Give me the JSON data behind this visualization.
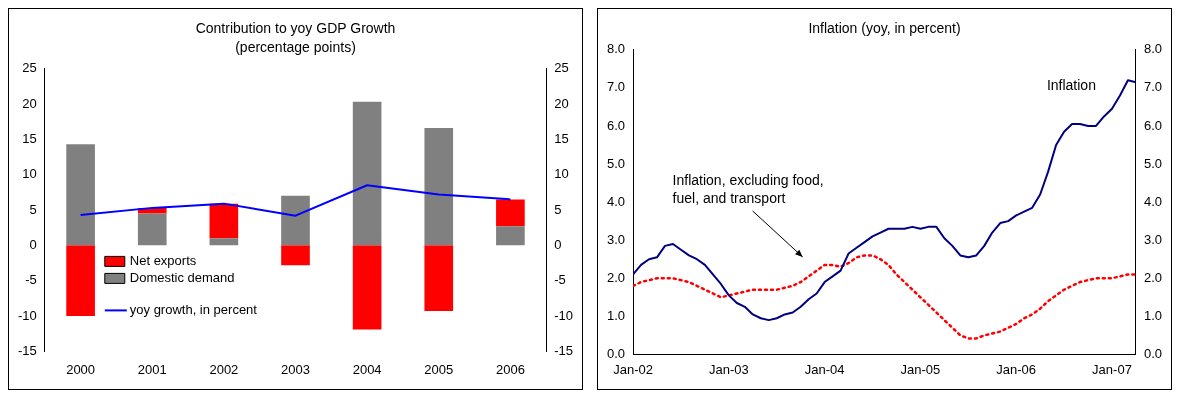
{
  "chart_data": [
    {
      "type": "bar",
      "title": "Contribution to yoy GDP Growth",
      "subtitle": "(percentage points)",
      "stacked": true,
      "categories": [
        "2000",
        "2001",
        "2002",
        "2003",
        "2004",
        "2005",
        "2006"
      ],
      "series": [
        {
          "name": "Domestic demand",
          "color": "#808080",
          "values": [
            14.3,
            4.5,
            1.0,
            7.0,
            20.3,
            16.6,
            2.7
          ]
        },
        {
          "name": "Net exports",
          "color": "#ff0000",
          "values": [
            -10.0,
            0.8,
            4.9,
            -2.8,
            -11.9,
            -9.3,
            3.8
          ]
        },
        {
          "name": "yoy growth, in percent",
          "type": "line",
          "color": "#0000ff",
          "values": [
            4.3,
            5.3,
            5.9,
            4.2,
            8.5,
            7.2,
            6.5
          ]
        }
      ],
      "ylim": [
        -15,
        25
      ],
      "yticks": [
        -15,
        -10,
        -5,
        0,
        5,
        10,
        15,
        20,
        25
      ],
      "y2lim": [
        -15,
        25
      ],
      "y2ticks": [
        -15,
        -10,
        -5,
        0,
        5,
        10,
        15,
        20,
        25
      ],
      "legend": "bottom left",
      "grid": false,
      "marker": "none"
    },
    {
      "type": "line",
      "title": "Inflation (yoy, in percent)",
      "x": [
        "2002-01",
        "2002-02",
        "2002-03",
        "2002-04",
        "2002-05",
        "2002-06",
        "2002-07",
        "2002-08",
        "2002-09",
        "2002-10",
        "2002-11",
        "2002-12",
        "2003-01",
        "2003-02",
        "2003-03",
        "2003-04",
        "2003-05",
        "2003-06",
        "2003-07",
        "2003-08",
        "2003-09",
        "2003-10",
        "2003-11",
        "2003-12",
        "2004-01",
        "2004-02",
        "2004-03",
        "2004-04",
        "2004-05",
        "2004-06",
        "2004-07",
        "2004-08",
        "2004-09",
        "2004-10",
        "2004-11",
        "2004-12",
        "2005-01",
        "2005-02",
        "2005-03",
        "2005-04",
        "2005-05",
        "2005-06",
        "2005-07",
        "2005-08",
        "2005-09",
        "2005-10",
        "2005-11",
        "2005-12",
        "2006-01",
        "2006-02",
        "2006-03",
        "2006-04",
        "2006-05",
        "2006-06",
        "2006-07",
        "2006-08",
        "2006-09",
        "2006-10",
        "2006-11",
        "2006-12",
        "2007-01",
        "2007-02",
        "2007-03",
        "2007-04"
      ],
      "series": [
        {
          "name": "Inflation",
          "color": "#000080",
          "line_style": "solid",
          "values": [
            2.1,
            2.35,
            2.5,
            2.55,
            2.85,
            2.9,
            2.75,
            2.6,
            2.5,
            2.35,
            2.1,
            1.85,
            1.55,
            1.35,
            1.25,
            1.05,
            0.95,
            0.9,
            0.95,
            1.05,
            1.1,
            1.25,
            1.45,
            1.6,
            1.9,
            2.05,
            2.2,
            2.65,
            2.8,
            2.95,
            3.1,
            3.2,
            3.3,
            3.3,
            3.3,
            3.35,
            3.3,
            3.35,
            3.35,
            3.05,
            2.85,
            2.6,
            2.55,
            2.6,
            2.85,
            3.2,
            3.45,
            3.5,
            3.65,
            3.75,
            3.85,
            4.2,
            4.8,
            5.5,
            5.85,
            6.05,
            6.05,
            6.0,
            6.0,
            6.25,
            6.45,
            6.8,
            7.2,
            7.15
          ]
        },
        {
          "name": "Inflation, excluding food, fuel, and transport",
          "color": "#ff0000",
          "line_style": "dotted",
          "values": [
            1.8,
            1.9,
            1.95,
            2.0,
            2.0,
            2.0,
            1.95,
            1.9,
            1.8,
            1.7,
            1.6,
            1.5,
            1.55,
            1.6,
            1.65,
            1.7,
            1.7,
            1.7,
            1.7,
            1.75,
            1.8,
            1.9,
            2.05,
            2.2,
            2.35,
            2.35,
            2.3,
            2.4,
            2.55,
            2.6,
            2.6,
            2.5,
            2.35,
            2.1,
            1.9,
            1.7,
            1.5,
            1.3,
            1.1,
            0.9,
            0.7,
            0.5,
            0.42,
            0.42,
            0.5,
            0.55,
            0.6,
            0.7,
            0.8,
            0.95,
            1.05,
            1.2,
            1.4,
            1.55,
            1.7,
            1.8,
            1.9,
            1.95,
            2.0,
            2.0,
            2.0,
            2.05,
            2.1,
            2.1
          ]
        }
      ],
      "xlim": [
        "2002-01",
        "2007-04"
      ],
      "xticks": [
        {
          "value": "2002-01",
          "label": "Jan-02"
        },
        {
          "value": "2003-01",
          "label": "Jan-03"
        },
        {
          "value": "2004-01",
          "label": "Jan-04"
        },
        {
          "value": "2005-01",
          "label": "Jan-05"
        },
        {
          "value": "2006-01",
          "label": "Jan-06"
        },
        {
          "value": "2007-01",
          "label": "Jan-07"
        }
      ],
      "ylim": [
        0,
        8
      ],
      "yticks": [
        {
          "value": 0,
          "label": "0.0"
        },
        {
          "value": 1,
          "label": "1.0"
        },
        {
          "value": 2,
          "label": "2.0"
        },
        {
          "value": 3,
          "label": "3.0"
        },
        {
          "value": 4,
          "label": "4.0"
        },
        {
          "value": 5,
          "label": "5.0"
        },
        {
          "value": 6,
          "label": "6.0"
        },
        {
          "value": 7,
          "label": "7.0"
        },
        {
          "value": 8,
          "label": "8.0"
        }
      ],
      "y2lim": [
        0,
        8
      ],
      "y2ticks": [
        {
          "value": 0,
          "label": "0.0"
        },
        {
          "value": 1,
          "label": "1.0"
        },
        {
          "value": 2,
          "label": "2.0"
        },
        {
          "value": 3,
          "label": "3.0"
        },
        {
          "value": 4,
          "label": "4.0"
        },
        {
          "value": 5,
          "label": "5.0"
        },
        {
          "value": 6,
          "label": "6.0"
        },
        {
          "value": 7,
          "label": "7.0"
        },
        {
          "value": 8,
          "label": "8.0"
        }
      ],
      "legend": false,
      "grid": false,
      "marker": "none"
    }
  ]
}
